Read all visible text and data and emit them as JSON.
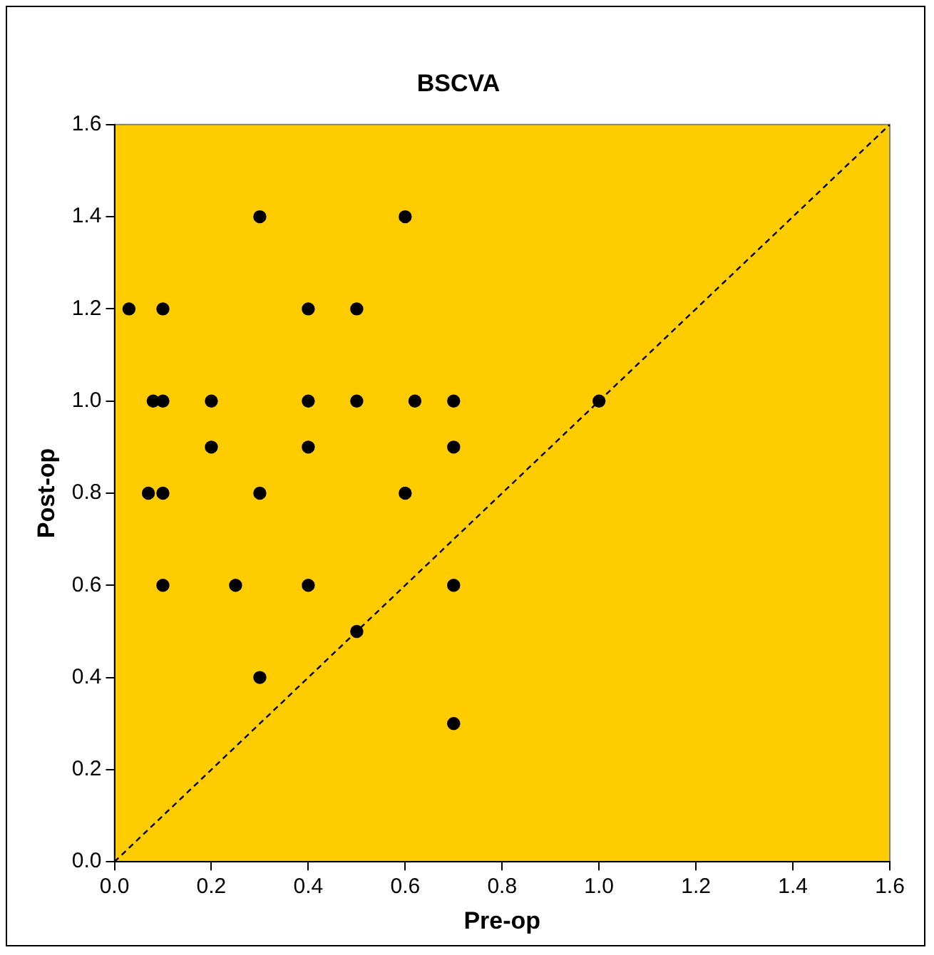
{
  "chart_data": {
    "type": "scatter",
    "title": "BSCVA",
    "xlabel": "Pre-op",
    "ylabel": "Post-op",
    "xlim": [
      0,
      1.6
    ],
    "ylim": [
      0,
      1.6
    ],
    "xticks": [
      {
        "value": 0,
        "label": "0.0"
      },
      {
        "value": 0.2,
        "label": "0.2"
      },
      {
        "value": 0.4,
        "label": "0.4"
      },
      {
        "value": 0.6,
        "label": "0.6"
      },
      {
        "value": 0.8,
        "label": "0.8"
      },
      {
        "value": 1,
        "label": "1.0"
      },
      {
        "value": 1.2,
        "label": "1.2"
      },
      {
        "value": 1.4,
        "label": "1.4"
      },
      {
        "value": 1.6,
        "label": "1.6"
      }
    ],
    "yticks": [
      {
        "value": 0,
        "label": "0.0"
      },
      {
        "value": 0.2,
        "label": "0.2"
      },
      {
        "value": 0.4,
        "label": "0.4"
      },
      {
        "value": 0.6,
        "label": "0.6"
      },
      {
        "value": 0.8,
        "label": "0.8"
      },
      {
        "value": 1,
        "label": "1.0"
      },
      {
        "value": 1.2,
        "label": "1.2"
      },
      {
        "value": 1.4,
        "label": "1.4"
      },
      {
        "value": 1.6,
        "label": "1.6"
      }
    ],
    "grid": false,
    "legend": false,
    "marker": "circle",
    "series": [
      {
        "color": "#000000",
        "x": [
          0.03,
          0.1,
          0.08,
          0.1,
          0.07,
          0.1,
          0.1,
          0.2,
          0.2,
          0.25,
          0.3,
          0.3,
          0.3,
          0.4,
          0.4,
          0.4,
          0.4,
          0.5,
          0.5,
          0.5,
          0.6,
          0.6,
          0.62,
          0.7,
          0.7,
          0.7,
          0.7,
          1.0
        ],
        "values": [
          1.2,
          1.2,
          1.0,
          1.0,
          0.8,
          0.8,
          0.6,
          1.0,
          0.9,
          0.6,
          1.4,
          0.8,
          0.4,
          1.2,
          1.0,
          0.9,
          0.6,
          1.2,
          1.0,
          0.5,
          1.4,
          0.8,
          1.0,
          1.0,
          0.9,
          0.6,
          0.3,
          1.0
        ]
      },
      {
        "type": "line",
        "color": "#000000",
        "line_style": "dashed",
        "marker": "none",
        "x": [
          0,
          1.6
        ],
        "values": [
          0,
          1.6
        ]
      }
    ]
  }
}
